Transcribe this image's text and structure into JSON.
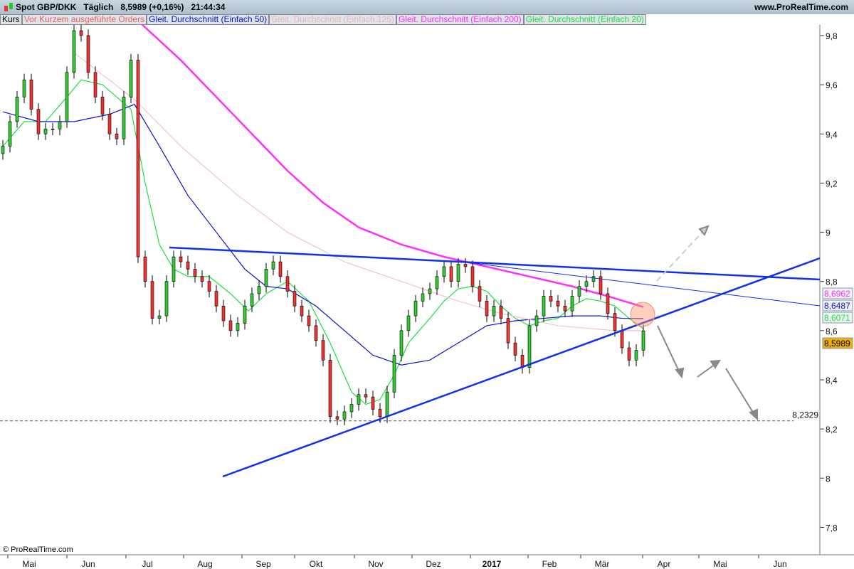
{
  "header": {
    "title": "Spot GBP/DKK   Täglich   8,5989 (+0,16%)   21:44:34",
    "site": "www.ProRealTime.com",
    "copyright": "© ProRealTime.com"
  },
  "legend": [
    {
      "label": "Kurs",
      "color": "#000000"
    },
    {
      "label": "Vor Kurzem ausgeführte Orders",
      "color": "#f06060"
    },
    {
      "label": "Gleit. Durchschnitt (Einfach 50)",
      "color": "#1010d0"
    },
    {
      "label": "Gleit. Durchschnitt (Einfach 125)",
      "color": "#f0b8b8"
    },
    {
      "label": "Gleit. Durchschnitt (Einfach 200)",
      "color": "#ff30ff"
    },
    {
      "label": "Gleit. Durchschnitt (Einfach 20)",
      "color": "#20e040"
    }
  ],
  "chart_data": {
    "type": "candlestick",
    "ylim": [
      7.7,
      9.9
    ],
    "yticks": [
      "9,8",
      "9,6",
      "9,4",
      "9,2",
      "9",
      "8,8",
      "8,6",
      "8,4",
      "8,2",
      "8",
      "7,8"
    ],
    "ytick_values": [
      9.8,
      9.6,
      9.4,
      9.2,
      9.0,
      8.8,
      8.6,
      8.4,
      8.2,
      8.0,
      7.8
    ],
    "xticks": [
      "Mai",
      "Jun",
      "Jul",
      "Aug",
      "Sep",
      "Okt",
      "Nov",
      "Dez",
      "2017",
      "Feb",
      "Mär",
      "Apr",
      "Mai",
      "Jun"
    ],
    "closes": [
      9.35,
      9.45,
      9.55,
      9.62,
      9.5,
      9.4,
      9.42,
      9.42,
      9.45,
      9.65,
      9.82,
      9.8,
      9.65,
      9.55,
      9.48,
      9.4,
      9.38,
      9.55,
      9.7,
      8.9,
      8.8,
      8.65,
      8.66,
      8.8,
      8.9,
      8.88,
      8.85,
      8.82,
      8.8,
      8.76,
      8.7,
      8.64,
      8.6,
      8.63,
      8.7,
      8.75,
      8.78,
      8.85,
      8.88,
      8.82,
      8.76,
      8.7,
      8.66,
      8.62,
      8.56,
      8.48,
      8.25,
      8.24,
      8.27,
      8.3,
      8.34,
      8.33,
      8.28,
      8.25,
      8.35,
      8.5,
      8.6,
      8.66,
      8.72,
      8.75,
      8.77,
      8.82,
      8.86,
      8.8,
      8.87,
      8.86,
      8.78,
      8.72,
      8.66,
      8.7,
      8.65,
      8.55,
      8.5,
      8.45,
      8.62,
      8.66,
      8.74,
      8.72,
      8.7,
      8.68,
      8.74,
      8.78,
      8.8,
      8.82,
      8.75,
      8.67,
      8.6,
      8.53,
      8.48,
      8.52,
      8.5989
    ],
    "series": [
      {
        "name": "Gleit. Durchschnitt (Einfach 20)",
        "color": "#20e040",
        "points": [
          [
            0,
            9.35
          ],
          [
            3,
            9.45
          ],
          [
            6,
            9.45
          ],
          [
            9,
            9.55
          ],
          [
            11,
            9.62
          ],
          [
            14,
            9.6
          ],
          [
            16,
            9.55
          ],
          [
            18,
            9.5
          ],
          [
            20,
            9.2
          ],
          [
            22,
            8.95
          ],
          [
            24,
            8.85
          ],
          [
            26,
            8.82
          ],
          [
            29,
            8.82
          ],
          [
            32,
            8.75
          ],
          [
            34.5,
            8.68
          ],
          [
            37,
            8.75
          ],
          [
            40,
            8.8
          ],
          [
            43,
            8.72
          ],
          [
            46,
            8.55
          ],
          [
            49,
            8.35
          ],
          [
            51,
            8.3
          ],
          [
            53,
            8.32
          ],
          [
            55,
            8.42
          ],
          [
            57,
            8.55
          ],
          [
            60,
            8.65
          ],
          [
            62,
            8.72
          ],
          [
            64,
            8.77
          ],
          [
            66,
            8.78
          ],
          [
            68,
            8.76
          ],
          [
            70,
            8.7
          ],
          [
            72,
            8.65
          ],
          [
            74,
            8.62
          ],
          [
            76,
            8.64
          ],
          [
            78,
            8.65
          ],
          [
            80,
            8.7
          ],
          [
            82,
            8.73
          ],
          [
            84,
            8.72
          ],
          [
            86,
            8.7
          ],
          [
            88,
            8.65
          ],
          [
            90,
            8.6071
          ]
        ]
      },
      {
        "name": "Gleit. Durchschnitt (Einfach 50)",
        "color": "#1010d0",
        "points": [
          [
            0,
            9.49
          ],
          [
            5,
            9.45
          ],
          [
            10,
            9.45
          ],
          [
            15,
            9.48
          ],
          [
            18.5,
            9.52
          ],
          [
            22,
            9.35
          ],
          [
            26,
            9.15
          ],
          [
            30,
            9.0
          ],
          [
            34,
            8.85
          ],
          [
            37,
            8.78
          ],
          [
            40,
            8.77
          ],
          [
            44,
            8.7
          ],
          [
            48,
            8.6
          ],
          [
            52,
            8.5
          ],
          [
            56,
            8.46
          ],
          [
            60,
            8.48
          ],
          [
            64,
            8.55
          ],
          [
            68,
            8.62
          ],
          [
            72,
            8.64
          ],
          [
            76,
            8.65
          ],
          [
            80,
            8.66
          ],
          [
            84,
            8.66
          ],
          [
            87,
            8.65
          ],
          [
            90,
            8.6487
          ]
        ]
      },
      {
        "name": "Gleit. Durchschnitt (Einfach 125)",
        "color": "#f4c4c4",
        "points": [
          [
            10,
            9.73
          ],
          [
            18.5,
            9.54
          ],
          [
            25,
            9.35
          ],
          [
            33,
            9.15
          ],
          [
            40,
            9.0
          ],
          [
            48,
            8.88
          ],
          [
            56,
            8.8
          ],
          [
            64,
            8.72
          ],
          [
            70,
            8.67
          ],
          [
            78,
            8.62
          ],
          [
            86,
            8.6
          ],
          [
            90,
            8.6
          ]
        ]
      },
      {
        "name": "Gleit. Durchschnitt (Einfach 200)",
        "color": "#ff30ff",
        "points": [
          [
            19,
            9.86
          ],
          [
            25,
            9.7
          ],
          [
            30,
            9.55
          ],
          [
            35,
            9.4
          ],
          [
            40,
            9.25
          ],
          [
            45,
            9.12
          ],
          [
            50,
            9.02
          ],
          [
            56,
            8.95
          ],
          [
            62,
            8.9
          ],
          [
            68,
            8.86
          ],
          [
            74,
            8.82
          ],
          [
            80,
            8.78
          ],
          [
            85,
            8.74
          ],
          [
            90,
            8.6962
          ]
        ]
      }
    ],
    "price_tags": [
      {
        "value": "8,6962",
        "color": "#ff30ff"
      },
      {
        "value": "8,6487",
        "color": "#1010d0"
      },
      {
        "value": "8,6071",
        "color": "#20e040"
      },
      {
        "value": "8,5989",
        "color": "#000000",
        "bg": "#f0b000"
      }
    ],
    "hline": {
      "value": 8.2329,
      "label": "8,2329"
    }
  }
}
